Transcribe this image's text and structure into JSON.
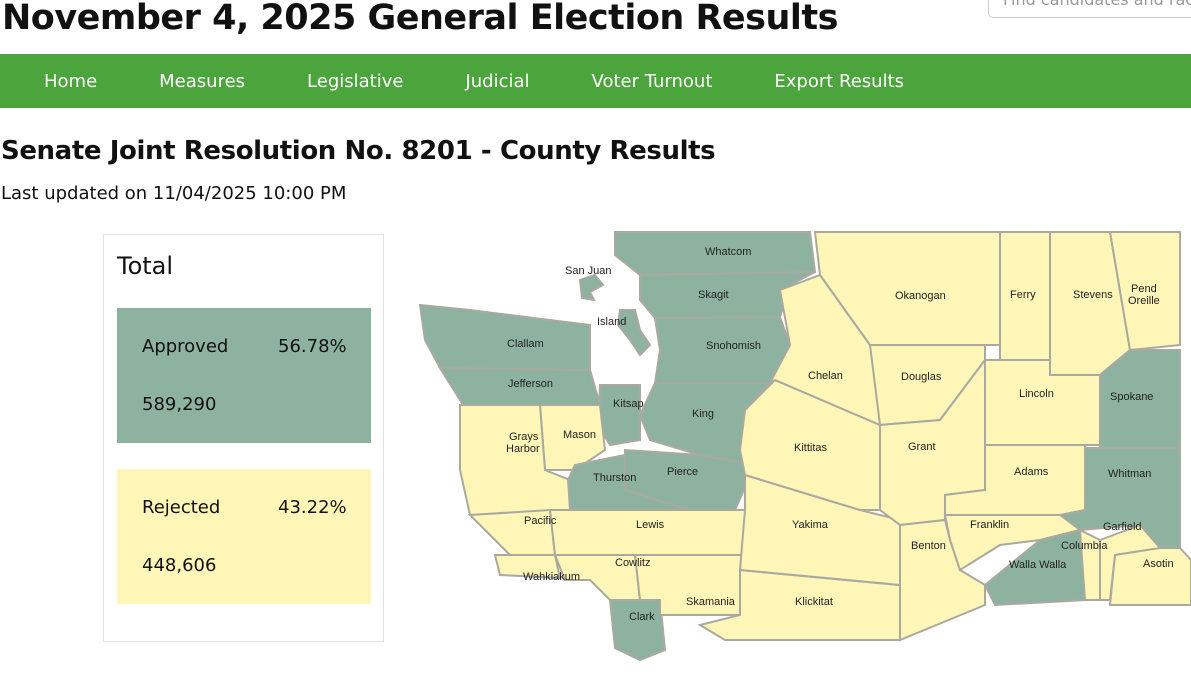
{
  "header": {
    "title": "November 4, 2025 General Election Results",
    "search_placeholder": "Find candidates and races"
  },
  "nav": [
    "Home",
    "Measures",
    "Legislative",
    "Judicial",
    "Voter Turnout",
    "Export Results"
  ],
  "page": {
    "subtitle": "Senate Joint Resolution No. 8201 - County Results",
    "last_updated": "Last updated on 11/04/2025 10:00 PM"
  },
  "total": {
    "heading": "Total",
    "approved": {
      "label": "Approved",
      "percent": "56.78%",
      "votes": "589,290"
    },
    "rejected": {
      "label": "Rejected",
      "percent": "43.22%",
      "votes": "448,606"
    }
  },
  "colors": {
    "approved": "#8db3a0",
    "rejected": "#fff6b8",
    "nav": "#4ca53c"
  },
  "counties": [
    {
      "name": "Whatcom",
      "result": "approved"
    },
    {
      "name": "San Juan",
      "result": "approved"
    },
    {
      "name": "Skagit",
      "result": "approved"
    },
    {
      "name": "Island",
      "result": "approved"
    },
    {
      "name": "Snohomish",
      "result": "approved"
    },
    {
      "name": "Clallam",
      "result": "approved"
    },
    {
      "name": "Jefferson",
      "result": "approved"
    },
    {
      "name": "Kitsap",
      "result": "approved"
    },
    {
      "name": "King",
      "result": "approved"
    },
    {
      "name": "Mason",
      "result": "rejected"
    },
    {
      "name": "Grays Harbor",
      "result": "rejected"
    },
    {
      "name": "Thurston",
      "result": "approved"
    },
    {
      "name": "Pierce",
      "result": "approved"
    },
    {
      "name": "Pacific",
      "result": "rejected"
    },
    {
      "name": "Lewis",
      "result": "rejected"
    },
    {
      "name": "Wahkiakum",
      "result": "rejected"
    },
    {
      "name": "Cowlitz",
      "result": "rejected"
    },
    {
      "name": "Clark",
      "result": "approved"
    },
    {
      "name": "Skamania",
      "result": "rejected"
    },
    {
      "name": "Klickitat",
      "result": "rejected"
    },
    {
      "name": "Yakima",
      "result": "rejected"
    },
    {
      "name": "Kittitas",
      "result": "rejected"
    },
    {
      "name": "Chelan",
      "result": "rejected"
    },
    {
      "name": "Okanogan",
      "result": "rejected"
    },
    {
      "name": "Douglas",
      "result": "rejected"
    },
    {
      "name": "Grant",
      "result": "rejected"
    },
    {
      "name": "Benton",
      "result": "rejected"
    },
    {
      "name": "Ferry",
      "result": "rejected"
    },
    {
      "name": "Stevens",
      "result": "rejected"
    },
    {
      "name": "Pend Oreille",
      "result": "rejected"
    },
    {
      "name": "Lincoln",
      "result": "rejected"
    },
    {
      "name": "Spokane",
      "result": "approved"
    },
    {
      "name": "Adams",
      "result": "rejected"
    },
    {
      "name": "Whitman",
      "result": "approved"
    },
    {
      "name": "Franklin",
      "result": "rejected"
    },
    {
      "name": "Walla Walla",
      "result": "approved"
    },
    {
      "name": "Columbia",
      "result": "rejected"
    },
    {
      "name": "Garfield",
      "result": "rejected"
    },
    {
      "name": "Asotin",
      "result": "rejected"
    }
  ]
}
